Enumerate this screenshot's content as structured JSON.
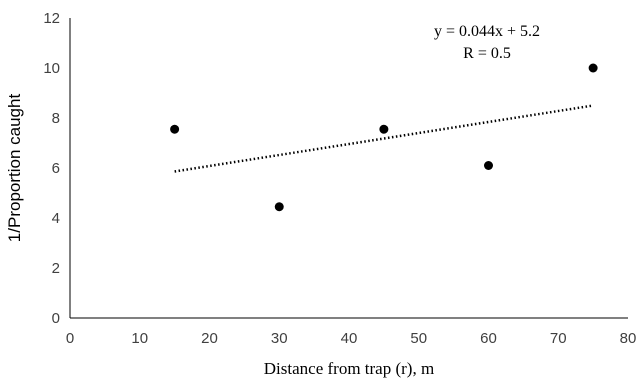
{
  "chart_data": {
    "type": "scatter",
    "xlabel": "Distance from trap (r), m",
    "ylabel": "1/Proportion caught",
    "xlim": [
      0,
      80
    ],
    "ylim": [
      0,
      12
    ],
    "x_ticks": [
      0,
      10,
      20,
      30,
      40,
      50,
      60,
      70,
      80
    ],
    "y_ticks": [
      0,
      2,
      4,
      6,
      8,
      10,
      12
    ],
    "grid": false,
    "series": [
      {
        "x": [
          15,
          30,
          45,
          60,
          75
        ],
        "y": [
          7.55,
          4.45,
          7.55,
          6.1,
          10.0
        ],
        "color": "#000000"
      }
    ],
    "trendline": {
      "slope": 0.044,
      "intercept": 5.2,
      "x_range": [
        15,
        75
      ],
      "style": "dotted",
      "color": "#000000"
    },
    "annotations": {
      "equation": "y = 0.044x + 5.2",
      "r_value": "R = 0.5"
    }
  }
}
